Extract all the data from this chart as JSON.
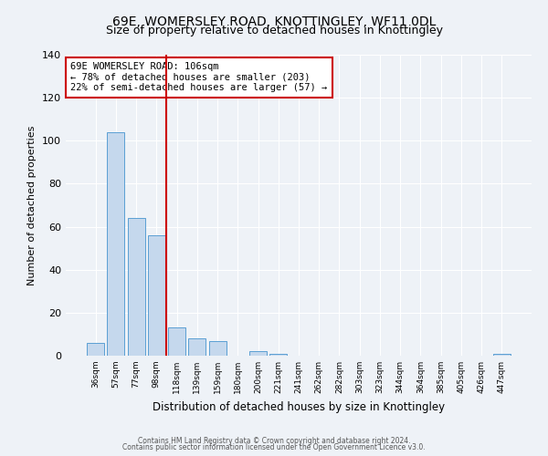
{
  "title": "69E, WOMERSLEY ROAD, KNOTTINGLEY, WF11 0DL",
  "subtitle": "Size of property relative to detached houses in Knottingley",
  "xlabel": "Distribution of detached houses by size in Knottingley",
  "ylabel": "Number of detached properties",
  "bar_labels": [
    "36sqm",
    "57sqm",
    "77sqm",
    "98sqm",
    "118sqm",
    "139sqm",
    "159sqm",
    "180sqm",
    "200sqm",
    "221sqm",
    "241sqm",
    "262sqm",
    "282sqm",
    "303sqm",
    "323sqm",
    "344sqm",
    "364sqm",
    "385sqm",
    "405sqm",
    "426sqm",
    "447sqm"
  ],
  "bar_values": [
    6,
    104,
    64,
    56,
    13,
    8,
    7,
    0,
    2,
    1,
    0,
    0,
    0,
    0,
    0,
    0,
    0,
    0,
    0,
    0,
    1
  ],
  "bar_color": "#c5d8ed",
  "bar_edge_color": "#5b9fd4",
  "ylim": [
    0,
    140
  ],
  "yticks": [
    0,
    20,
    40,
    60,
    80,
    100,
    120,
    140
  ],
  "vline_x": 3.5,
  "vline_color": "#cc0000",
  "annotation_text": "69E WOMERSLEY ROAD: 106sqm\n← 78% of detached houses are smaller (203)\n22% of semi-detached houses are larger (57) →",
  "annotation_box_color": "#ffffff",
  "annotation_box_edge": "#cc0000",
  "footer1": "Contains HM Land Registry data © Crown copyright and database right 2024.",
  "footer2": "Contains public sector information licensed under the Open Government Licence v3.0.",
  "bg_color": "#eef2f7",
  "grid_color": "#ffffff",
  "title_fontsize": 10,
  "subtitle_fontsize": 9
}
